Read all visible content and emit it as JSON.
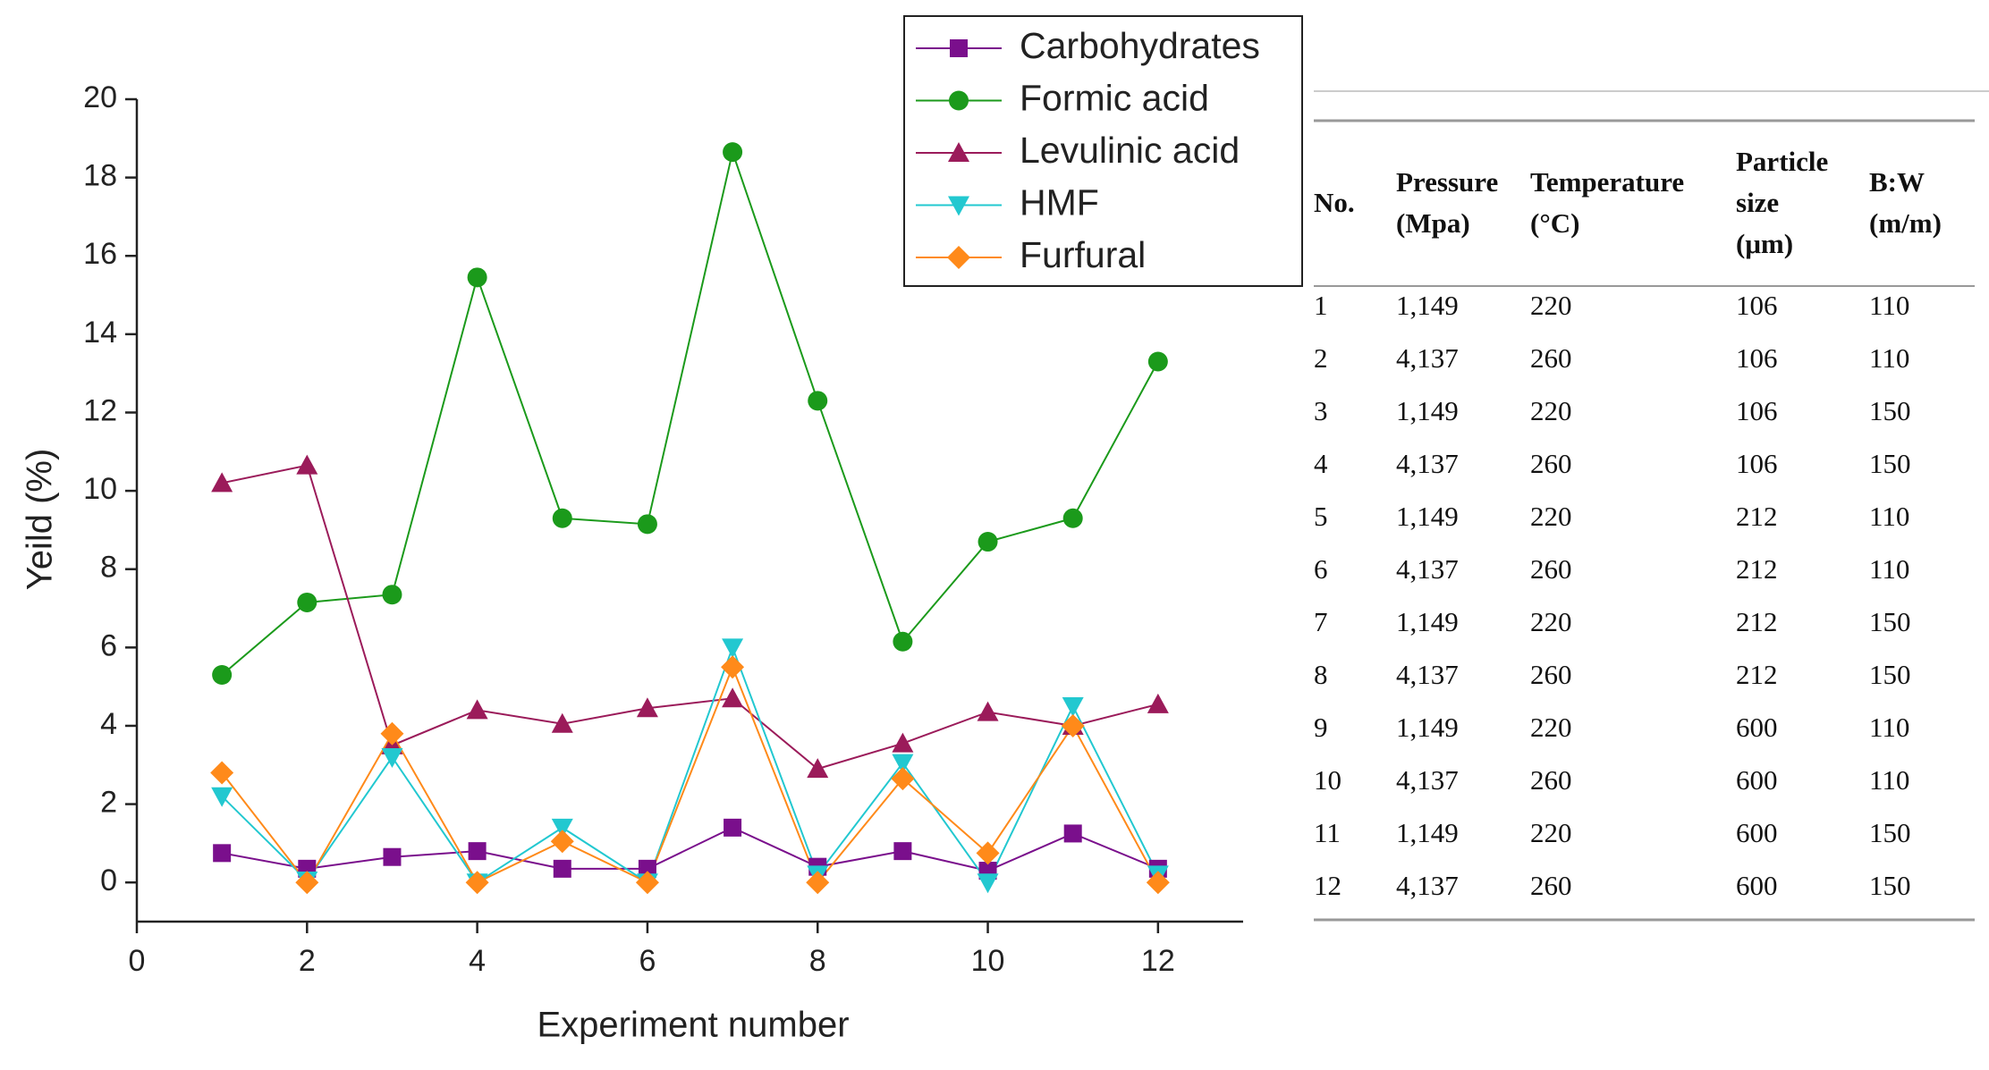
{
  "chart_data": {
    "type": "line",
    "xlabel": "Experiment number",
    "ylabel": "Yeild (%)",
    "x": [
      1,
      2,
      3,
      4,
      5,
      6,
      7,
      8,
      9,
      10,
      11,
      12
    ],
    "xlim": [
      0,
      13
    ],
    "xticks": [
      0,
      2,
      4,
      6,
      8,
      10,
      12
    ],
    "ylim": [
      -1,
      20
    ],
    "yticks": [
      0,
      2,
      4,
      6,
      8,
      10,
      12,
      14,
      16,
      18,
      20
    ],
    "legend": "top-right",
    "series": [
      {
        "name": "Carbohydrates",
        "color": "#7a0f8c",
        "marker": "square",
        "values": [
          0.75,
          0.35,
          0.65,
          0.8,
          0.35,
          0.35,
          1.4,
          0.4,
          0.8,
          0.3,
          1.25,
          0.35
        ]
      },
      {
        "name": "Formic acid",
        "color": "#1b9a1b",
        "marker": "circle",
        "values": [
          5.3,
          7.15,
          7.35,
          15.45,
          9.3,
          9.15,
          18.65,
          12.3,
          6.15,
          8.7,
          9.3,
          13.3
        ]
      },
      {
        "name": "Levulinic acid",
        "color": "#9b1b5a",
        "marker": "triangle-up",
        "values": [
          10.2,
          10.65,
          3.5,
          4.4,
          4.05,
          4.45,
          4.7,
          2.9,
          3.55,
          4.35,
          4.0,
          4.55
        ]
      },
      {
        "name": "HMF",
        "color": "#22c8d0",
        "marker": "triangle-down",
        "values": [
          2.2,
          0.05,
          3.2,
          0.0,
          1.4,
          0.0,
          6.0,
          0.2,
          3.05,
          0.0,
          4.5,
          0.2
        ]
      },
      {
        "name": "Furfural",
        "color": "#ff8a1a",
        "marker": "diamond",
        "values": [
          2.8,
          0.0,
          3.8,
          0.0,
          1.05,
          0.0,
          5.5,
          0.0,
          2.65,
          0.75,
          4.0,
          0.0
        ]
      }
    ]
  },
  "table": {
    "header": [
      [
        "No."
      ],
      [
        "Pressure",
        "(Mpa)"
      ],
      [
        "Temperature",
        "(°C)"
      ],
      [
        "Particle",
        "size",
        "(μm)"
      ],
      [
        "B:W",
        "(m/m)"
      ]
    ],
    "rows": [
      [
        "1",
        "1,149",
        "220",
        "106",
        "110"
      ],
      [
        "2",
        "4,137",
        "260",
        "106",
        "110"
      ],
      [
        "3",
        "1,149",
        "220",
        "106",
        "150"
      ],
      [
        "4",
        "4,137",
        "260",
        "106",
        "150"
      ],
      [
        "5",
        "1,149",
        "220",
        "212",
        "110"
      ],
      [
        "6",
        "4,137",
        "260",
        "212",
        "110"
      ],
      [
        "7",
        "1,149",
        "220",
        "212",
        "150"
      ],
      [
        "8",
        "4,137",
        "260",
        "212",
        "150"
      ],
      [
        "9",
        "1,149",
        "220",
        "600",
        "110"
      ],
      [
        "10",
        "4,137",
        "260",
        "600",
        "110"
      ],
      [
        "11",
        "1,149",
        "220",
        "600",
        "150"
      ],
      [
        "12",
        "4,137",
        "260",
        "600",
        "150"
      ]
    ]
  }
}
